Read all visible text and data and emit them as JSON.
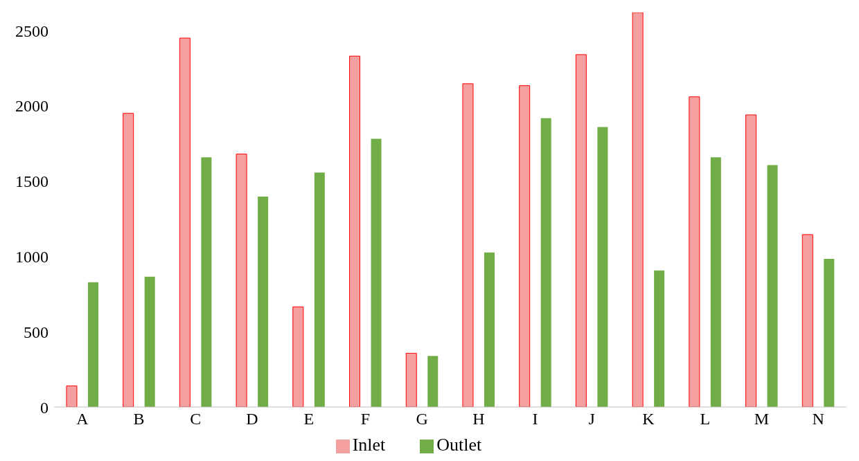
{
  "chart_data": {
    "type": "bar",
    "categories": [
      "A",
      "B",
      "C",
      "D",
      "E",
      "F",
      "G",
      "H",
      "I",
      "J",
      "K",
      "L",
      "M",
      "N"
    ],
    "series": [
      {
        "name": "Inlet",
        "color": "#f4a0a0",
        "values": [
          140,
          1950,
          2450,
          1680,
          665,
          2330,
          357,
          2147,
          2134,
          2340,
          2620,
          2060,
          1940,
          1145
        ]
      },
      {
        "name": "Outlet",
        "color": "#70ad47",
        "values": [
          829,
          865,
          1658,
          1397,
          1557,
          1781,
          339,
          1026,
          1918,
          1859,
          907,
          1658,
          1607,
          984
        ]
      }
    ],
    "ylim": [
      0,
      2620
    ],
    "yticks": [
      0,
      500,
      1000,
      1500,
      2000,
      2500
    ],
    "grid": false,
    "legend": "bottom"
  }
}
